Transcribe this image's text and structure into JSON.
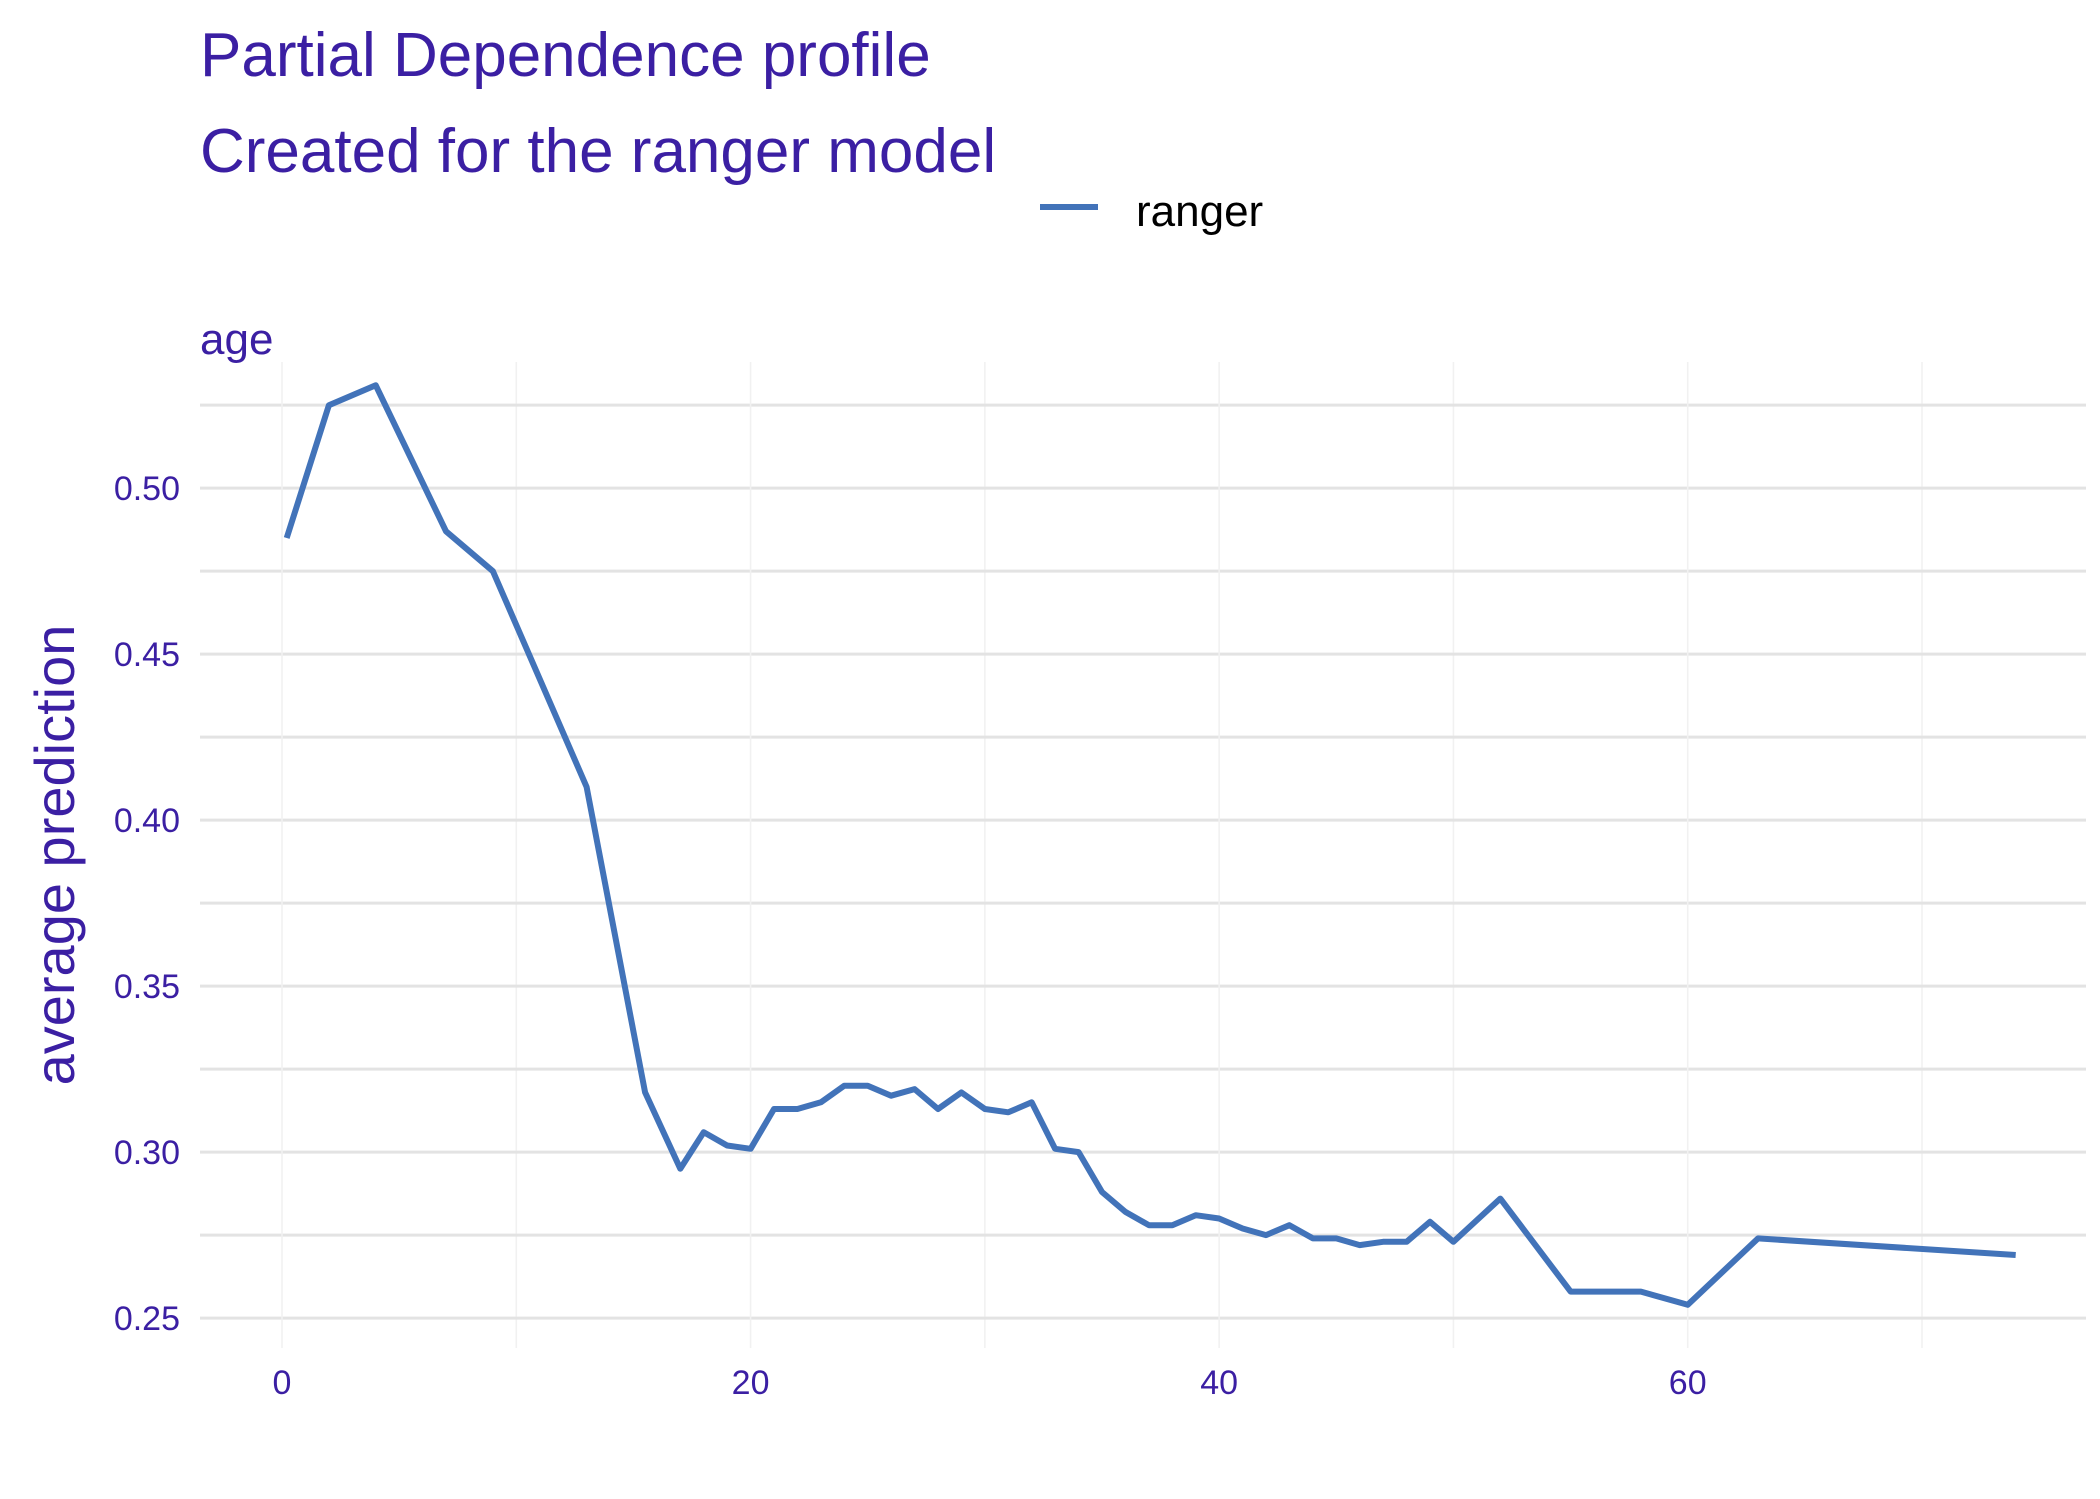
{
  "chart_data": {
    "type": "line",
    "title": "Partial Dependence profile",
    "subtitle": "Created for the ranger model",
    "facet_label": "age",
    "xlabel": "",
    "ylabel": "average prediction",
    "xlim": [
      -3.5,
      77
    ],
    "ylim": [
      0.241,
      0.538
    ],
    "x_ticks": [
      0,
      20,
      40,
      60
    ],
    "x_tick_labels": [
      "0",
      "20",
      "40",
      "60"
    ],
    "y_ticks": [
      0.25,
      0.3,
      0.35,
      0.4,
      0.45,
      0.5
    ],
    "y_tick_labels": [
      "0.25",
      "0.30",
      "0.35",
      "0.40",
      "0.45",
      "0.50"
    ],
    "grid": true,
    "legend_position": "top",
    "series": [
      {
        "name": "ranger",
        "color": "#4273b9",
        "x": [
          0.2,
          2,
          4,
          7,
          9,
          13,
          15.5,
          17,
          18,
          19,
          20,
          21,
          22,
          23,
          24,
          25,
          26,
          27,
          28,
          29,
          30,
          31,
          32,
          33,
          34,
          35,
          36,
          37,
          38,
          39,
          40,
          41,
          42,
          43,
          44,
          45,
          46,
          47,
          48,
          49,
          50,
          52,
          55,
          58,
          60,
          63,
          74
        ],
        "y": [
          0.485,
          0.525,
          0.531,
          0.487,
          0.475,
          0.41,
          0.318,
          0.295,
          0.306,
          0.302,
          0.301,
          0.313,
          0.313,
          0.315,
          0.32,
          0.32,
          0.317,
          0.319,
          0.313,
          0.318,
          0.313,
          0.312,
          0.315,
          0.301,
          0.3,
          0.288,
          0.282,
          0.278,
          0.278,
          0.281,
          0.28,
          0.277,
          0.275,
          0.278,
          0.274,
          0.274,
          0.272,
          0.273,
          0.273,
          0.279,
          0.273,
          0.286,
          0.258,
          0.258,
          0.254,
          0.274,
          0.269
        ]
      }
    ]
  }
}
